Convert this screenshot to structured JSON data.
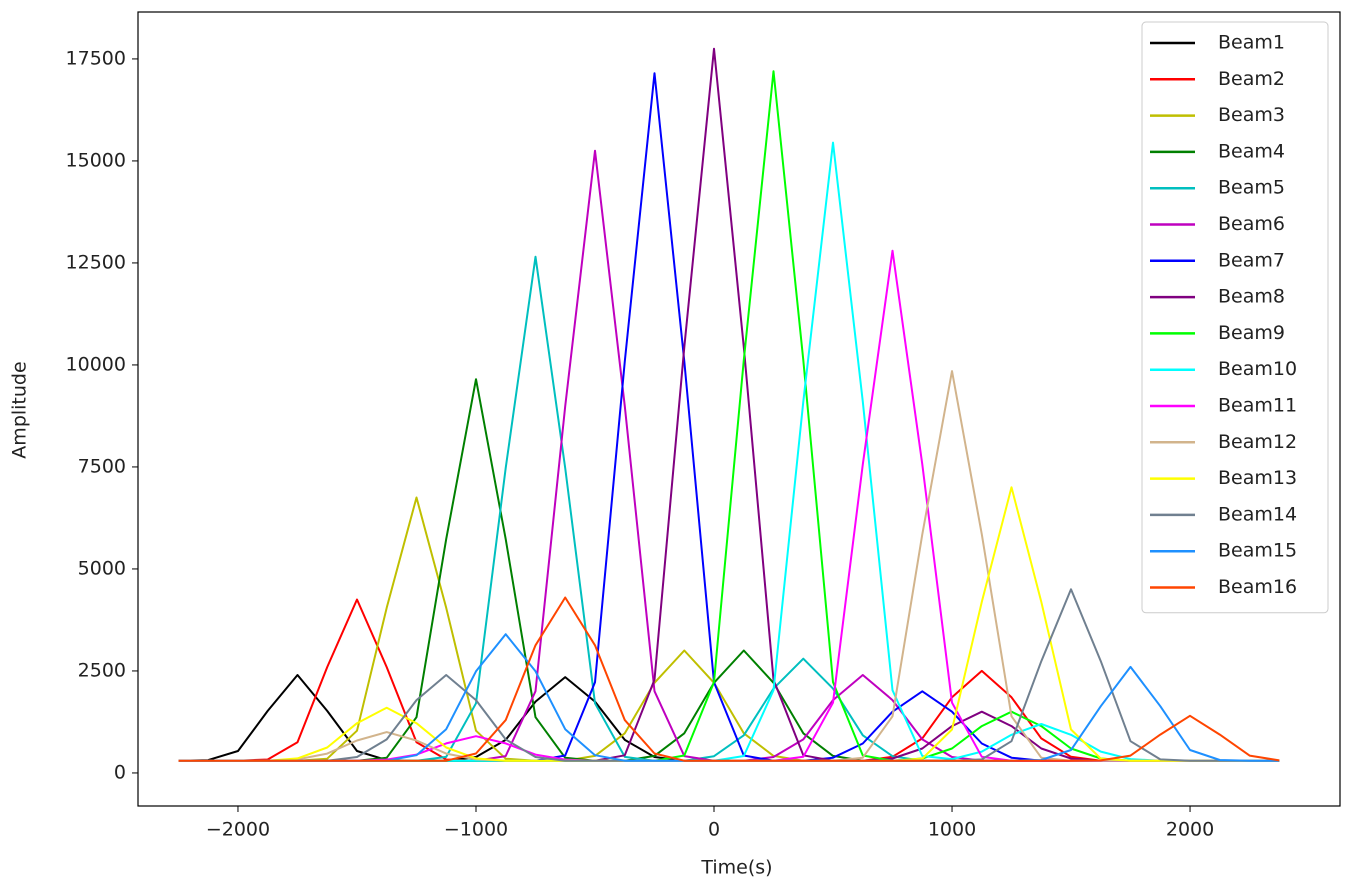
{
  "chart_data": {
    "type": "line",
    "x_label": "Time(s)",
    "y_label": "Amplitude",
    "x": [
      -2250,
      -2125,
      -2000,
      -1875,
      -1750,
      -1625,
      -1500,
      -1375,
      -1250,
      -1125,
      -1000,
      -875,
      -750,
      -625,
      -500,
      -375,
      -250,
      -125,
      0,
      125,
      250,
      375,
      500,
      625,
      750,
      875,
      1000,
      1125,
      1250,
      1375,
      1500,
      1625,
      1750,
      1875,
      2000,
      2125,
      2250,
      2375
    ],
    "xlim": [
      -2420,
      2630
    ],
    "xticks": [
      {
        "value": -2000,
        "label": "−2000"
      },
      {
        "value": -1000,
        "label": "−1000"
      },
      0,
      1000,
      2000
    ],
    "ylim": [
      -810,
      18650
    ],
    "yticks": [
      0,
      2500,
      5000,
      7500,
      10000,
      12500,
      15000,
      17500
    ],
    "legend": "upper right",
    "series": [
      {
        "name": "Beam1",
        "color": "#000000",
        "values": [
          300,
          316,
          539,
          1520,
          2400,
          1520,
          539,
          316,
          300,
          300,
          390,
          810,
          1749,
          2350,
          1749,
          810,
          390,
          300,
          300,
          300,
          300,
          300,
          300,
          300,
          300,
          300,
          300,
          300,
          300,
          300,
          300,
          300,
          300,
          300,
          300,
          300,
          300,
          300
        ]
      },
      {
        "name": "Beam2",
        "color": "#ff0000",
        "values": [
          300,
          300,
          300,
          330,
          750,
          2595,
          4250,
          2595,
          750,
          330,
          300,
          300,
          300,
          300,
          300,
          300,
          300,
          300,
          300,
          300,
          300,
          300,
          300,
          300,
          397,
          848,
          1855,
          2500,
          1855,
          848,
          397,
          300,
          300,
          300,
          300,
          300,
          300,
          300
        ]
      },
      {
        "name": "Beam3",
        "color": "#bfbf00",
        "values": [
          300,
          300,
          300,
          300,
          300,
          349,
          1035,
          4047,
          6750,
          4047,
          1035,
          349,
          300,
          300,
          419,
          972,
          2209,
          3000,
          2209,
          972,
          419,
          300,
          300,
          300,
          300,
          300,
          300,
          300,
          300,
          300,
          300,
          300,
          300,
          300,
          300,
          300,
          300,
          300
        ]
      },
      {
        "name": "Beam4",
        "color": "#008000",
        "values": [
          300,
          300,
          300,
          300,
          300,
          300,
          300,
          371,
          1366,
          5732,
          9650,
          5732,
          1366,
          371,
          300,
          300,
          419,
          972,
          2209,
          3000,
          2209,
          972,
          419,
          300,
          300,
          300,
          300,
          300,
          300,
          300,
          300,
          300,
          300,
          300,
          300,
          300,
          300,
          300
        ]
      },
      {
        "name": "Beam5",
        "color": "#00bfbf",
        "values": [
          300,
          300,
          300,
          300,
          300,
          300,
          300,
          300,
          300,
          394,
          1708,
          7475,
          12650,
          7475,
          1708,
          394,
          300,
          300,
          410,
          923,
          2068,
          2800,
          2068,
          923,
          410,
          300,
          300,
          300,
          300,
          300,
          300,
          300,
          300,
          300,
          300,
          300,
          300,
          300
        ]
      },
      {
        "name": "Beam6",
        "color": "#bf00bf",
        "values": [
          300,
          300,
          300,
          300,
          300,
          300,
          300,
          300,
          300,
          300,
          300,
          414,
          2004,
          8986,
          15250,
          8986,
          2004,
          414,
          300,
          300,
          392,
          823,
          1785,
          2400,
          1785,
          823,
          392,
          300,
          300,
          300,
          300,
          300,
          300,
          300,
          300,
          300,
          300,
          300
        ]
      },
      {
        "name": "Beam7",
        "color": "#0000ff",
        "values": [
          300,
          300,
          300,
          300,
          300,
          300,
          300,
          300,
          300,
          300,
          300,
          300,
          300,
          428,
          2221,
          10090,
          17150,
          10090,
          2221,
          428,
          300,
          300,
          375,
          723,
          1502,
          2000,
          1502,
          723,
          375,
          300,
          300,
          300,
          300,
          300,
          300,
          300,
          300,
          300
        ]
      },
      {
        "name": "Beam8",
        "color": "#800080",
        "values": [
          300,
          300,
          300,
          300,
          300,
          300,
          300,
          300,
          300,
          300,
          300,
          300,
          300,
          300,
          300,
          433,
          2289,
          10438,
          17750,
          10438,
          2289,
          433,
          300,
          300,
          353,
          599,
          1148,
          1500,
          1148,
          599,
          353,
          300,
          300,
          300,
          300,
          300,
          300,
          300
        ]
      },
      {
        "name": "Beam9",
        "color": "#00ff00",
        "values": [
          300,
          300,
          300,
          300,
          300,
          300,
          300,
          300,
          300,
          300,
          300,
          300,
          300,
          300,
          300,
          300,
          300,
          428,
          2227,
          10119,
          17200,
          10119,
          2227,
          428,
          300,
          353,
          599,
          1148,
          1500,
          1148,
          599,
          353,
          300,
          300,
          300,
          300,
          300,
          300
        ]
      },
      {
        "name": "Beam10",
        "color": "#00ffff",
        "values": [
          300,
          300,
          300,
          300,
          300,
          300,
          300,
          300,
          300,
          300,
          300,
          300,
          300,
          300,
          300,
          300,
          300,
          300,
          300,
          415,
          2027,
          9102,
          15450,
          9102,
          2027,
          415,
          340,
          524,
          936,
          1200,
          936,
          524,
          340,
          300,
          300,
          300,
          300,
          300
        ]
      },
      {
        "name": "Beam11",
        "color": "#ff00ff",
        "values": [
          300,
          300,
          300,
          300,
          300,
          300,
          300,
          326,
          449,
          724,
          900,
          724,
          449,
          326,
          300,
          300,
          300,
          300,
          300,
          300,
          300,
          395,
          1725,
          7563,
          12800,
          7563,
          1725,
          395,
          300,
          300,
          300,
          300,
          300,
          300,
          300,
          300,
          300,
          300
        ]
      },
      {
        "name": "Beam12",
        "color": "#d2b48c",
        "values": [
          300,
          300,
          300,
          300,
          331,
          474,
          795,
          1000,
          795,
          474,
          331,
          300,
          300,
          300,
          300,
          300,
          300,
          300,
          300,
          300,
          300,
          300,
          300,
          373,
          1389,
          5849,
          9850,
          5849,
          1389,
          373,
          300,
          300,
          300,
          300,
          300,
          300,
          300,
          300
        ]
      },
      {
        "name": "Beam13",
        "color": "#ffff00",
        "values": [
          300,
          300,
          300,
          300,
          357,
          624,
          1219,
          1600,
          1219,
          624,
          357,
          300,
          300,
          300,
          300,
          300,
          300,
          300,
          300,
          300,
          300,
          300,
          300,
          300,
          300,
          351,
          1064,
          4193,
          7000,
          4193,
          1064,
          351,
          300,
          300,
          300,
          300,
          300,
          300
        ]
      },
      {
        "name": "Beam14",
        "color": "#708090",
        "values": [
          300,
          300,
          300,
          300,
          300,
          300,
          392,
          823,
          1785,
          2400,
          1785,
          823,
          392,
          300,
          300,
          300,
          300,
          300,
          300,
          300,
          300,
          300,
          300,
          300,
          300,
          300,
          300,
          332,
          779,
          2740,
          4500,
          2740,
          779,
          332,
          300,
          300,
          300,
          300
        ]
      },
      {
        "name": "Beam15",
        "color": "#1e90ff",
        "values": [
          300,
          300,
          300,
          300,
          300,
          300,
          300,
          300,
          436,
          1072,
          2492,
          3400,
          2492,
          1072,
          436,
          300,
          300,
          300,
          300,
          300,
          300,
          300,
          300,
          300,
          300,
          300,
          300,
          300,
          300,
          317,
          562,
          1636,
          2600,
          1636,
          562,
          317,
          300,
          300
        ]
      },
      {
        "name": "Beam16",
        "color": "#ff4500",
        "values": [
          300,
          300,
          300,
          300,
          300,
          300,
          300,
          300,
          300,
          300,
          476,
          1296,
          3128,
          4300,
          3128,
          1296,
          476,
          300,
          300,
          300,
          300,
          300,
          300,
          300,
          300,
          300,
          300,
          300,
          300,
          300,
          300,
          308,
          425,
          939,
          1400,
          939,
          425,
          308
        ]
      }
    ]
  }
}
